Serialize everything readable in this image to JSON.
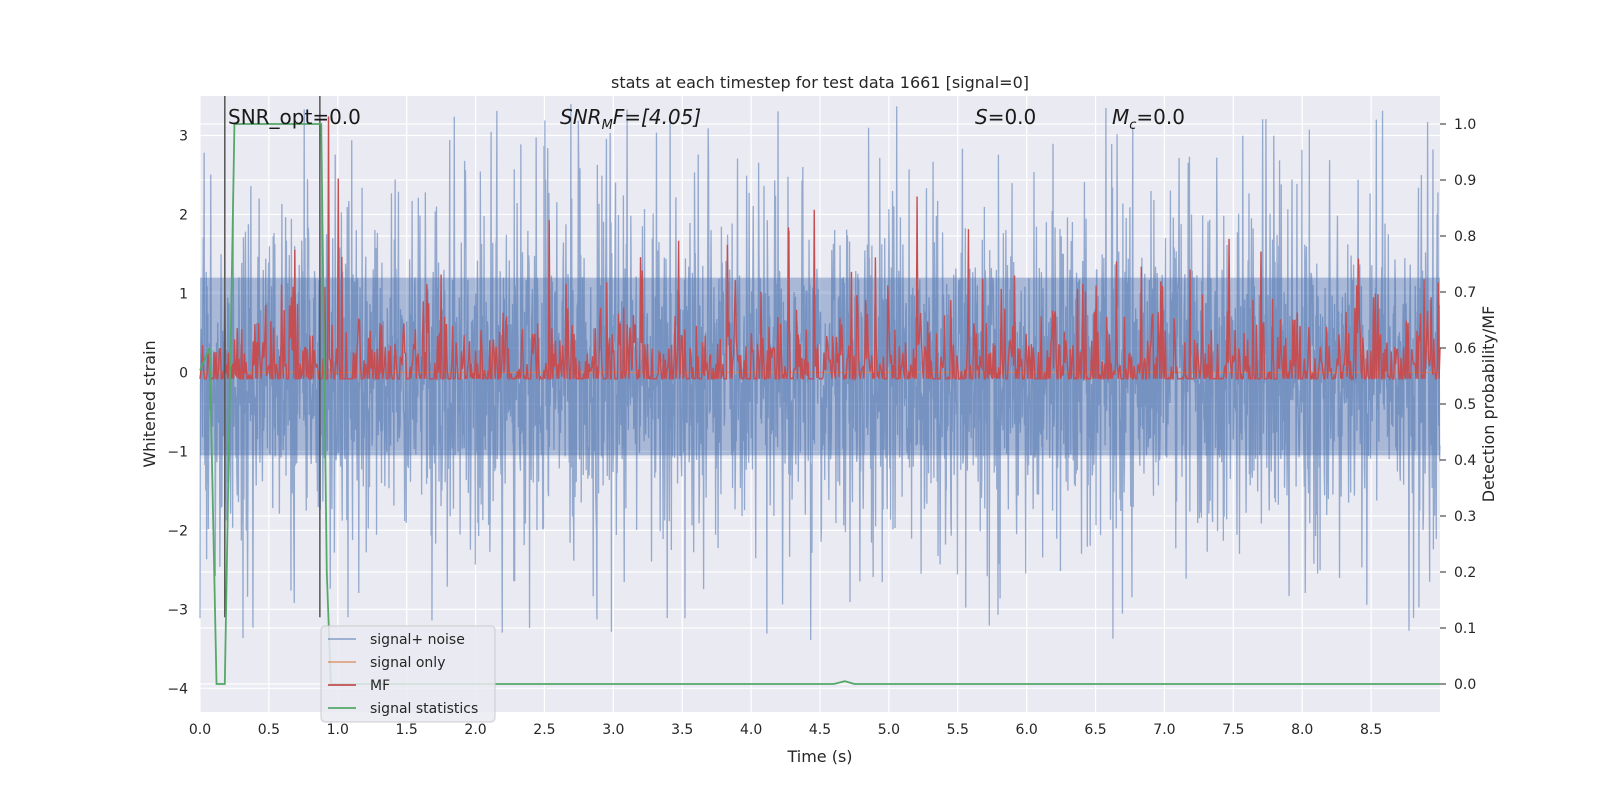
{
  "chart_data": {
    "type": "line",
    "title": "stats at each timestep for test data 1661 [signal=0]",
    "xlabel": "Time (s)",
    "ylabel": "Whitened strain",
    "ylabel_right": "Detection probability/MF",
    "xlim": [
      0.0,
      9.0
    ],
    "ylim": [
      -4.3,
      3.5
    ],
    "ylim_right": [
      -0.05,
      1.05
    ],
    "x_ticks": [
      "0.0",
      "0.5",
      "1.0",
      "1.5",
      "2.0",
      "2.5",
      "3.0",
      "3.5",
      "4.0",
      "4.5",
      "5.0",
      "5.5",
      "6.0",
      "6.5",
      "7.0",
      "7.5",
      "8.0",
      "8.5"
    ],
    "y_ticks": [
      "3",
      "2",
      "1",
      "0",
      "−1",
      "−2",
      "−3",
      "−4"
    ],
    "y_right_ticks": [
      "1.0",
      "0.9",
      "0.8",
      "0.7",
      "0.6",
      "0.5",
      "0.4",
      "0.3",
      "0.2",
      "0.1",
      "0.0"
    ],
    "grid": true,
    "legend_position": "lower-left",
    "annotations": {
      "snr_opt": "SNR_opt=0.0",
      "snr_mf_base": "SNR",
      "snr_mf_sub": "M",
      "snr_mf_rest": "F=[4.05]",
      "s_sym": "S",
      "s_rest": "=0.0",
      "mc_sym": "M",
      "mc_sub": "c",
      "mc_rest": "=0.0"
    },
    "series": [
      {
        "name": "signal+ noise",
        "color": "#4c72b0",
        "axis": "left",
        "style": "noise",
        "amplitude": 1.2,
        "spike_max": 3.4
      },
      {
        "name": "signal only",
        "color": "#dd8452",
        "axis": "left",
        "values_constant": 0.0
      },
      {
        "name": "MF",
        "color": "#c44e52",
        "axis": "right",
        "style": "noise",
        "baseline": 0.52,
        "amplitude": 0.08
      },
      {
        "name": "signal statistics",
        "color": "#55a868",
        "axis": "right",
        "x": [
          0.0,
          0.07,
          0.12,
          0.18,
          0.25,
          0.88,
          0.92,
          0.95,
          1.0,
          4.6,
          4.68,
          4.75,
          9.0
        ],
        "y": [
          0.56,
          0.6,
          0.0,
          0.0,
          1.0,
          1.0,
          0.2,
          0.0,
          0.0,
          0.0,
          0.005,
          0.0,
          0.0
        ]
      }
    ],
    "vlines": [
      {
        "x": 0.18,
        "color": "#555555"
      },
      {
        "x": 0.87,
        "color": "#555555"
      }
    ]
  }
}
